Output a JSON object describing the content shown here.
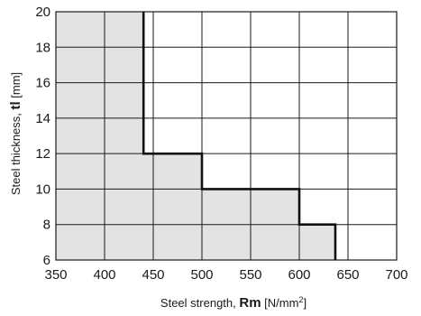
{
  "chart_data": {
    "type": "area",
    "title": "",
    "xlabel": {
      "prefix": "Steel strength, ",
      "symbol": "Rm",
      "unit_open": " [N/mm",
      "unit_sup": "2",
      "unit_close": "]"
    },
    "ylabel": {
      "prefix": "Steel thickness, ",
      "symbol": "tl",
      "unit": " [mm]"
    },
    "xlim": [
      350,
      700
    ],
    "ylim": [
      6,
      20
    ],
    "xticks": [
      350,
      400,
      450,
      500,
      550,
      600,
      650,
      700
    ],
    "yticks": [
      6,
      8,
      10,
      12,
      14,
      16,
      18,
      20
    ],
    "grid": true,
    "boundary": {
      "x": [
        440,
        440,
        500,
        500,
        600,
        600,
        637,
        637
      ],
      "y": [
        20,
        12,
        12,
        10,
        10,
        8,
        8,
        6
      ]
    },
    "colors": {
      "fill": "#e3e3e3",
      "line": "#111111",
      "grid": "#1a1a1a"
    }
  }
}
